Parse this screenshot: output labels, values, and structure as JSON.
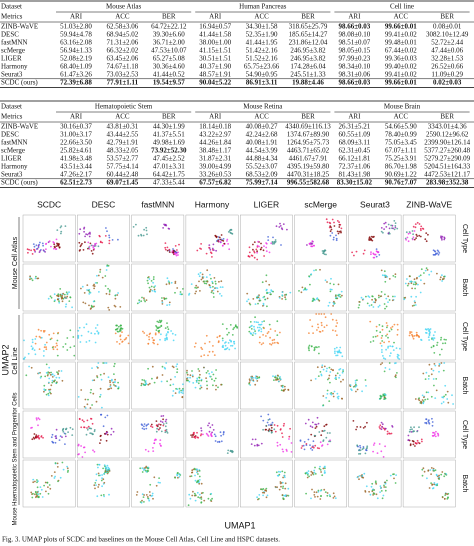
{
  "tables": [
    {
      "datasets": [
        "Dataset",
        "Mouse Atlas",
        "Human Pancreas",
        "Cell line"
      ],
      "metrics": [
        "Metrics",
        "ARI",
        "ACC",
        "BER",
        "ARI",
        "ACC",
        "BER",
        "ARI",
        "ACC",
        "BER"
      ],
      "rows": [
        {
          "cells": [
            "ZINB-WaVE",
            "51.03±2.80",
            "62.58±3.06",
            "64.72±22.12",
            "16.94±0.57",
            "34.30±1.58",
            "318.65±25.79",
            "98.66±0.03",
            "99.66±0.01",
            "0.08±0.01"
          ],
          "bold": [
            7,
            8
          ]
        },
        {
          "cells": [
            "DESC",
            "59.94±4.78",
            "68.94±5.02",
            "39.30±6.60",
            "41.44±1.58",
            "52.35±1.90",
            "185.65±14.27",
            "98.08±0.10",
            "99.41±0.02",
            "3082.10±12.49"
          ],
          "bold": []
        },
        {
          "cells": [
            "fastMNN",
            "63.16±2.08",
            "71.31±2.06",
            "36.71±2.00",
            "38.00±1.00",
            "41.44±1.95",
            "231.86±12.04",
            "98.51±0.07",
            "99.48±0.01",
            "52.72±2.44"
          ],
          "bold": []
        },
        {
          "cells": [
            "scMerge",
            "56.94±1.33",
            "66.32±2.02",
            "47.53±10.07",
            "41.15±1.51",
            "51.42±2.16",
            "246.95±3.82",
            "98.05±0.15",
            "67.44±0.02",
            "47.44±0.06"
          ],
          "bold": []
        },
        {
          "cells": [
            "LIGER",
            "52.08±2.19",
            "63.45±2.06",
            "65.27±5.08",
            "30.51±1.51",
            "51.52±2.16",
            "246.95±3.82",
            "97.99±0.23",
            "99.36±0.03",
            "32.28±1.53"
          ],
          "bold": []
        },
        {
          "cells": [
            "Harmony",
            "68.40±1.09",
            "74.67±1.18",
            "30.36±4.60",
            "40.37±1.90",
            "65.75±23.66",
            "174.28±6.04",
            "98.34±0.10",
            "99.40±0.02",
            "26.52±0.66"
          ],
          "bold": []
        },
        {
          "cells": [
            "Seurat3",
            "61.47±3.26",
            "73.03±2.53",
            "41.44±0.52",
            "48.57±1.91",
            "54.90±0.95",
            "245.51±1.33",
            "98.31±0.06",
            "99.41±0.02",
            "11.09±0.29"
          ],
          "bold": []
        },
        {
          "cells": [
            "SCDC (ours)",
            "72.39±6.88",
            "77.91±1.11",
            "19.54±9.57",
            "90.04±5.22",
            "86.91±3.11",
            "19.88±4.46",
            "98.66±0.03",
            "99.66±0.01",
            "0.02±0.03"
          ],
          "bold": [
            1,
            2,
            3,
            4,
            5,
            6,
            7,
            8,
            9
          ]
        }
      ]
    },
    {
      "datasets": [
        "Dataset",
        "Hematopoietic Stem",
        "Mouse Retina",
        "Mouse Brain"
      ],
      "metrics": [
        "Metrics",
        "ARI",
        "ACC",
        "BER",
        "ARI",
        "ACC",
        "BER",
        "ARI",
        "ACC",
        "BER"
      ],
      "rows": [
        {
          "cells": [
            "ZINB-WaVE",
            "30.16±0.37",
            "43.81±0.31",
            "44.30±1.99",
            "18.14±0.18",
            "40.08±0.27",
            "4340.69±116.13",
            "26.31±5.21",
            "54.66±5.90",
            "3343.01±4.36"
          ],
          "bold": []
        },
        {
          "cells": [
            "DESC",
            "31.00±3.17",
            "43.44±2.55",
            "41.37±5.51",
            "43.22±2.97",
            "42.24±2.68",
            "1374.67±89.90",
            "60.55±1.09",
            "78.40±0.99",
            "2590.12±96.62"
          ],
          "bold": []
        },
        {
          "cells": [
            "fastMNN",
            "22.66±3.50",
            "42.79±1.91",
            "49.98±1.69",
            "44.26±1.84",
            "40.08±1.91",
            "1264.95±75.73",
            "68.09±3.11",
            "75.05±3.45",
            "2399.90±126.14"
          ],
          "bold": []
        },
        {
          "cells": [
            "scMerge",
            "25.82±4.61",
            "48.33±2.05",
            "73.92±52.30",
            "38.48±1.17",
            "44.54±3.99",
            "4463.71±65.02",
            "62.31±0.45",
            "67.07±1.11",
            "5377.27±260.48"
          ],
          "bold": [
            3
          ]
        },
        {
          "cells": [
            "LIGER",
            "41.98±3.48",
            "53.57±2.77",
            "47.45±2.52",
            "31.87±2.31",
            "44.88±4.34",
            "4461.67±7.91",
            "66.12±1.81",
            "75.25±3.91",
            "5279.27±290.09"
          ],
          "bold": []
        },
        {
          "cells": [
            "Harmony",
            "43.51±3.44",
            "57.75±4.14",
            "47.01±3.31",
            "39.00±4.99",
            "55.52±3.07",
            "4395.19±59.80",
            "72.37±1.06",
            "86.70±1.98",
            "5204.51±164.33"
          ],
          "bold": []
        },
        {
          "cells": [
            "Seurat3",
            "47.26±2.17",
            "60.44±2.48",
            "64.42±1.75",
            "33.26±0.53",
            "68.53±2.09",
            "4470.31±18.25",
            "81.43±1.98",
            "90.69±1.22",
            "4472.53±121.17"
          ],
          "bold": []
        },
        {
          "cells": [
            "SCDC (ours)",
            "62.51±2.73",
            "69.07±1.45",
            "47.33±5.44",
            "67.57±6.82",
            "75.99±7.14",
            "996.55±582.68",
            "83.30±15.02",
            "90.76±7.07",
            "283.98±352.38"
          ],
          "bold": [
            1,
            2,
            4,
            5,
            6,
            7,
            8,
            9
          ]
        }
      ]
    }
  ],
  "figure": {
    "methods": [
      "SCDC",
      "DESC",
      "fastMNN",
      "Harmony",
      "LIGER",
      "scMerge",
      "Seurat3",
      "ZINB-WaVE"
    ],
    "groups": [
      "Mouse Cell Atlas",
      "Cell Line",
      "Mouse Haematopoietic Stem and Progenitor Cells"
    ],
    "row_labels": [
      "Cell Type",
      "Batch"
    ],
    "x_label": "UMAP1",
    "y_label": "UMAP2",
    "caption": "Fig. 3.  UMAP plots of SCDC and baselines on the Mouse Cell Atlas, Cell Line and HSPC datasets."
  }
}
